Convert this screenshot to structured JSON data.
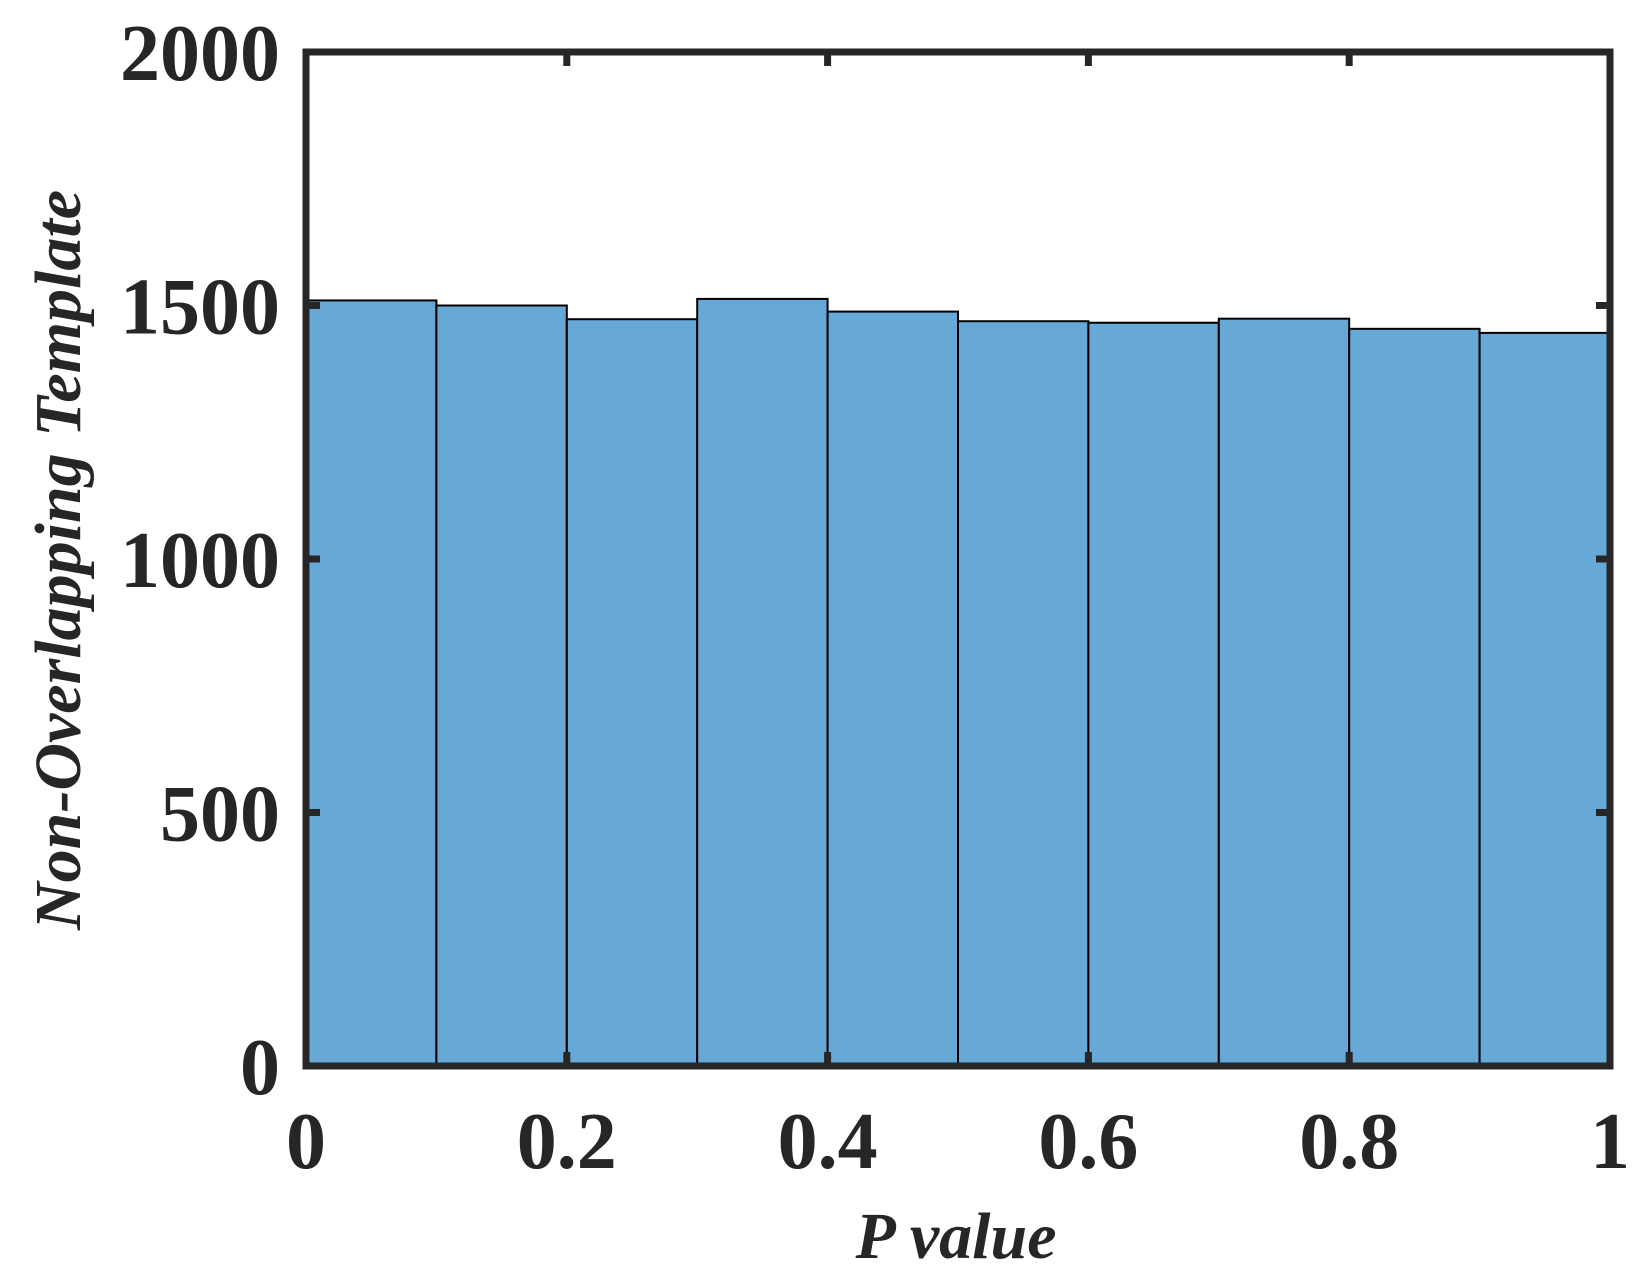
{
  "chart_data": {
    "type": "bar",
    "title": "",
    "xlabel": "P value",
    "ylabel": "Non-Overlapping Template",
    "bin_edges": [
      0,
      0.1,
      0.2,
      0.3,
      0.4,
      0.5,
      0.6,
      0.7,
      0.8,
      0.9,
      1.0
    ],
    "values": [
      1510,
      1500,
      1473,
      1513,
      1488,
      1469,
      1466,
      1474,
      1454,
      1446
    ],
    "xlim": [
      0,
      1
    ],
    "ylim": [
      0,
      2000
    ],
    "xticks": [
      0,
      0.2,
      0.4,
      0.6,
      0.8,
      1
    ],
    "xtick_labels": [
      "0",
      "0.2",
      "0.4",
      "0.6",
      "0.8",
      "1"
    ],
    "yticks": [
      0,
      500,
      1000,
      1500,
      2000
    ],
    "ytick_labels": [
      "0",
      "500",
      "1000",
      "1500",
      "2000"
    ],
    "grid": false,
    "legend": "none",
    "colors": {
      "bar_fill": "#66a8d6",
      "bar_edge": "#000000",
      "axis": "#262626",
      "text": "#262626"
    }
  }
}
